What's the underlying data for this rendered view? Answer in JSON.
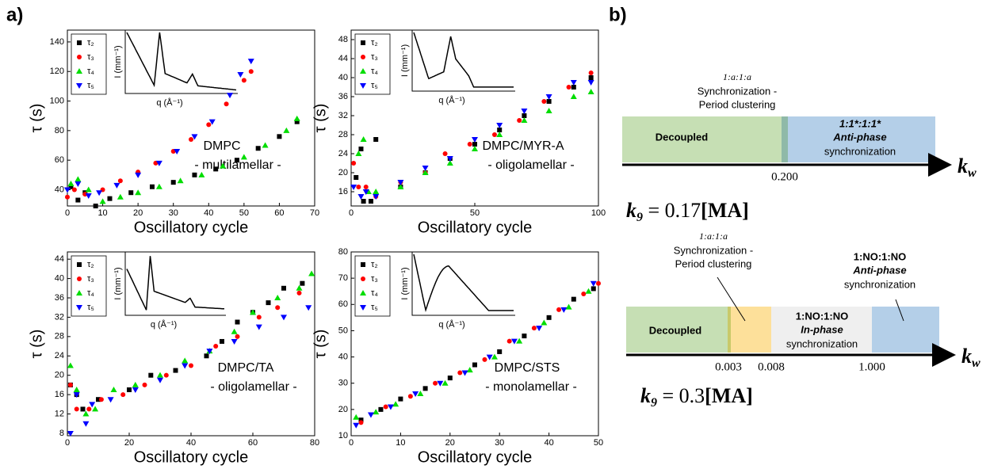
{
  "panel_labels": [
    "a)",
    "b)"
  ],
  "chart_data": [
    {
      "type": "scatter",
      "xlabel": "Oscillatory cycle",
      "ylabel": "τ (s)",
      "annotations": [
        "DMPC",
        "- multilamellar -"
      ],
      "inset": {
        "xlabel": "q (Å⁻¹)",
        "ylabel": "I (mm⁻¹)"
      },
      "xlim": [
        0,
        70
      ],
      "xticks": [
        0,
        10,
        20,
        30,
        40,
        50,
        60,
        70
      ],
      "ylim": [
        29,
        148
      ],
      "yticks": [
        40,
        60,
        80,
        100,
        120,
        140
      ],
      "series": [
        {
          "name": "τ₂",
          "color": "#000000",
          "marker": "square",
          "x": [
            1,
            3,
            5,
            8,
            12,
            18,
            24,
            30,
            36,
            42,
            48,
            54,
            60,
            65
          ],
          "y": [
            42,
            33,
            38,
            29,
            34,
            38,
            42,
            45,
            50,
            54,
            60,
            68,
            76,
            86
          ]
        },
        {
          "name": "τ₃",
          "color": "#ff0000",
          "marker": "circle",
          "x": [
            0,
            2,
            5,
            10,
            15,
            20,
            25,
            30,
            35,
            40,
            45,
            50,
            52
          ],
          "y": [
            35,
            40,
            37,
            40,
            46,
            52,
            58,
            66,
            74,
            84,
            98,
            114,
            120
          ]
        },
        {
          "name": "τ₄",
          "color": "#00dd00",
          "marker": "triangle-up",
          "x": [
            1,
            3,
            6,
            10,
            15,
            20,
            26,
            32,
            38,
            44,
            50,
            56,
            62,
            65
          ],
          "y": [
            44,
            47,
            40,
            32,
            35,
            38,
            42,
            46,
            50,
            56,
            62,
            70,
            80,
            88
          ]
        },
        {
          "name": "τ₅",
          "color": "#0000ff",
          "marker": "triangle-down",
          "x": [
            0,
            3,
            6,
            9,
            14,
            20,
            26,
            31,
            36,
            41,
            46,
            49,
            52
          ],
          "y": [
            40,
            44,
            36,
            38,
            43,
            50,
            58,
            66,
            76,
            86,
            104,
            118,
            127
          ]
        }
      ]
    },
    {
      "type": "scatter",
      "xlabel": "Oscillatory cycle",
      "ylabel": "τ (s)",
      "annotations": [
        "DMPC/MYR-A",
        "- oligolamellar -"
      ],
      "inset": {
        "xlabel": "q (Å⁻¹)",
        "ylabel": "I (mm⁻¹)"
      },
      "xlim": [
        0,
        100
      ],
      "xticks": [
        0,
        50,
        100
      ],
      "ylim": [
        13,
        50
      ],
      "yticks": [
        16,
        20,
        24,
        28,
        32,
        36,
        40,
        44,
        48
      ],
      "series": [
        {
          "name": "τ₂",
          "color": "#000000",
          "marker": "square",
          "x": [
            2,
            4,
            5,
            8,
            10,
            20,
            30,
            40,
            50,
            60,
            70,
            80,
            90,
            97
          ],
          "y": [
            19,
            25,
            14,
            14,
            27,
            17,
            20,
            23,
            26,
            29,
            32,
            35,
            38,
            40
          ]
        },
        {
          "name": "τ₃",
          "color": "#ff0000",
          "marker": "circle",
          "x": [
            1,
            3,
            6,
            10,
            20,
            30,
            38,
            48,
            58,
            68,
            78,
            88,
            97
          ],
          "y": [
            22,
            17,
            17,
            15,
            18,
            20,
            24,
            26,
            28,
            31,
            35,
            38,
            41
          ]
        },
        {
          "name": "τ₄",
          "color": "#00dd00",
          "marker": "triangle-up",
          "x": [
            3,
            5,
            7,
            10,
            20,
            30,
            40,
            50,
            60,
            70,
            80,
            90,
            97
          ],
          "y": [
            24,
            27,
            16,
            16,
            17,
            20,
            22,
            25,
            28,
            31,
            33,
            36,
            37
          ]
        },
        {
          "name": "τ₅",
          "color": "#0000ff",
          "marker": "triangle-down",
          "x": [
            1,
            4,
            6,
            10,
            20,
            30,
            40,
            50,
            60,
            70,
            80,
            90,
            97
          ],
          "y": [
            17,
            15,
            16,
            15,
            18,
            21,
            23,
            27,
            30,
            33,
            36,
            39,
            39
          ]
        }
      ]
    },
    {
      "type": "scatter",
      "xlabel": "Oscillatory cycle",
      "ylabel": "τ (s)",
      "annotations": [
        "DMPC/TA",
        "- oligolamellar -"
      ],
      "inset": {
        "xlabel": "q (Å⁻¹)",
        "ylabel": "I (mm⁻¹)"
      },
      "xlim": [
        0,
        80
      ],
      "xticks": [
        0,
        20,
        40,
        60,
        80
      ],
      "ylim": [
        7.5,
        45.5
      ],
      "yticks": [
        8,
        12,
        16,
        20,
        24,
        28,
        32,
        36,
        40,
        44
      ],
      "series": [
        {
          "name": "τ₂",
          "color": "#000000",
          "marker": "square",
          "x": [
            1,
            3,
            5,
            10,
            20,
            27,
            35,
            45,
            50,
            55,
            60,
            65,
            70,
            76
          ],
          "y": [
            18,
            16,
            13,
            15,
            17,
            20,
            21,
            24,
            27,
            31,
            33,
            35,
            38,
            39
          ]
        },
        {
          "name": "τ₃",
          "color": "#ff0000",
          "marker": "circle",
          "x": [
            1,
            3,
            7,
            11,
            18,
            25,
            32,
            40,
            48,
            55,
            62,
            68,
            75
          ],
          "y": [
            18,
            13,
            13,
            15,
            16,
            18,
            20,
            22,
            26,
            28,
            32,
            34,
            37
          ]
        },
        {
          "name": "τ₄",
          "color": "#00dd00",
          "marker": "triangle-up",
          "x": [
            1,
            3,
            6,
            9,
            15,
            22,
            30,
            38,
            46,
            54,
            60,
            68,
            75,
            79
          ],
          "y": [
            22,
            17,
            12,
            13,
            17,
            18,
            20,
            23,
            25,
            29,
            33,
            36,
            38,
            41
          ]
        },
        {
          "name": "τ₅",
          "color": "#0000ff",
          "marker": "triangle-down",
          "x": [
            1,
            3,
            6,
            8,
            14,
            22,
            30,
            38,
            46,
            54,
            62,
            70,
            78
          ],
          "y": [
            8,
            16,
            10,
            14,
            15,
            17,
            19,
            22,
            25,
            27,
            30,
            32,
            34
          ]
        }
      ]
    },
    {
      "type": "scatter",
      "xlabel": "Oscillatory cycle",
      "ylabel": "τ (s)",
      "annotations": [
        "DMPC/STS",
        "- monolamellar -"
      ],
      "inset": {
        "xlabel": "q (Å⁻¹)",
        "ylabel": "I (mm⁻¹)"
      },
      "xlim": [
        0,
        50
      ],
      "xticks": [
        0,
        10,
        20,
        30,
        40,
        50
      ],
      "ylim": [
        10,
        80
      ],
      "yticks": [
        10,
        20,
        30,
        40,
        50,
        60,
        70,
        80
      ],
      "series": [
        {
          "name": "τ₂",
          "color": "#000000",
          "marker": "square",
          "x": [
            2,
            6,
            10,
            15,
            20,
            25,
            30,
            35,
            40,
            45,
            49
          ],
          "y": [
            16,
            20,
            24,
            28,
            32,
            37,
            42,
            48,
            55,
            62,
            66
          ]
        },
        {
          "name": "τ₃",
          "color": "#ff0000",
          "marker": "circle",
          "x": [
            2,
            7,
            12,
            17,
            22,
            27,
            32,
            37,
            42,
            47,
            50
          ],
          "y": [
            15,
            21,
            25,
            30,
            34,
            39,
            46,
            51,
            58,
            64,
            68
          ]
        },
        {
          "name": "τ₄",
          "color": "#00dd00",
          "marker": "triangle-up",
          "x": [
            1,
            5,
            9,
            14,
            19,
            24,
            29,
            34,
            39,
            44,
            48
          ],
          "y": [
            17,
            19,
            22,
            26,
            30,
            35,
            40,
            46,
            53,
            59,
            65
          ]
        },
        {
          "name": "τ₅",
          "color": "#0000ff",
          "marker": "triangle-down",
          "x": [
            1,
            4,
            8,
            13,
            18,
            23,
            28,
            33,
            38,
            43,
            49
          ],
          "y": [
            14,
            18,
            21,
            26,
            30,
            34,
            40,
            46,
            51,
            58,
            68
          ]
        }
      ]
    }
  ],
  "diagram": {
    "top": {
      "above": [
        "1:a:1:a",
        "Synchronization -",
        "Period clustering"
      ],
      "decoupled": "Decoupled",
      "right": [
        "1:1*:1:1*",
        "Anti-phase",
        "synchronization"
      ],
      "ticks": [
        "0.200"
      ],
      "axis_var": "k",
      "axis_sub": "w",
      "formula": {
        "var": "k",
        "sub": "9",
        "rest": " = 0.17",
        "bracket": "[MA]"
      }
    },
    "bottom": {
      "left_above": [
        "1:a:1:a",
        "Synchronization -",
        "Period clustering"
      ],
      "right_above": [
        "1:NO:1:NO",
        "Anti-phase",
        "synchronization"
      ],
      "decoupled": "Decoupled",
      "middle": [
        "1:NO:1:NO",
        "In-phase",
        "synchronization"
      ],
      "ticks": [
        "0.003",
        "0.008",
        "1.000"
      ],
      "axis_var": "k",
      "axis_sub": "w",
      "formula": {
        "var": "k",
        "sub": "9",
        "rest": " = 0.3",
        "bracket": "[MA]"
      }
    }
  }
}
